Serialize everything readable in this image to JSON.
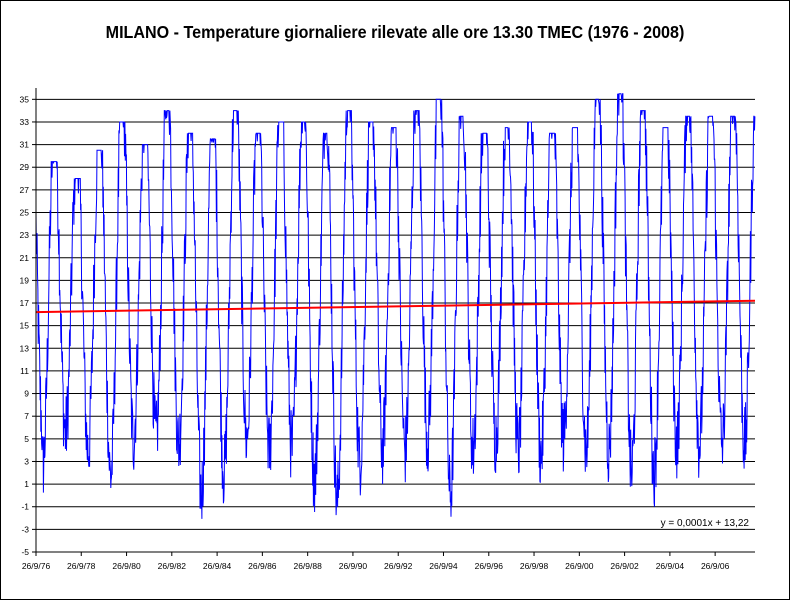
{
  "chart_data": {
    "type": "line",
    "title": "MILANO - Temperature giornaliere rilevate alle ore 13.30 TMEC (1976 - 2008)",
    "xlabel": "",
    "ylabel": "",
    "ylim": [
      -5,
      36
    ],
    "grid": true,
    "y_ticks": [
      "-5",
      "-3",
      "-1",
      "1",
      "3",
      "5",
      "7",
      "9",
      "11",
      "13",
      "15",
      "17",
      "19",
      "21",
      "23",
      "25",
      "27",
      "29",
      "31",
      "33",
      "35"
    ],
    "x_ticks": [
      "26/9/76",
      "26/9/78",
      "26/9/80",
      "26/9/82",
      "26/9/84",
      "26/9/86",
      "26/9/88",
      "26/9/90",
      "26/9/92",
      "26/9/94",
      "26/9/96",
      "26/9/98",
      "26/9/00",
      "26/9/02",
      "26/9/04",
      "26/9/06"
    ],
    "x_range": [
      "1976-09-26",
      "2008-06-30"
    ],
    "series": [
      {
        "color": "#0000ff",
        "yearly_peaks": [
          29.5,
          28,
          30.5,
          33,
          31,
          34,
          32,
          31.5,
          34,
          32,
          33,
          33,
          32,
          34,
          33,
          32.5,
          34,
          35,
          33.5,
          32,
          32.5,
          33,
          32,
          32.5,
          35,
          35.5,
          34,
          32.5,
          33.5
        ],
        "yearly_troughs": [
          -0.3,
          2.5,
          1,
          -1.3,
          2,
          2,
          1.5,
          -2.8,
          -1,
          2,
          1,
          1,
          -1.5,
          -3.5,
          0,
          1,
          1,
          2,
          -3,
          1,
          2,
          1,
          0.5,
          2,
          1,
          1,
          -1,
          -1,
          1.5
        ]
      },
      {
        "name": "trend",
        "color": "#ff0000",
        "values": [
          16.2,
          17.2
        ]
      }
    ],
    "trendline_equation": "y = 0,0001x + 13,22"
  }
}
